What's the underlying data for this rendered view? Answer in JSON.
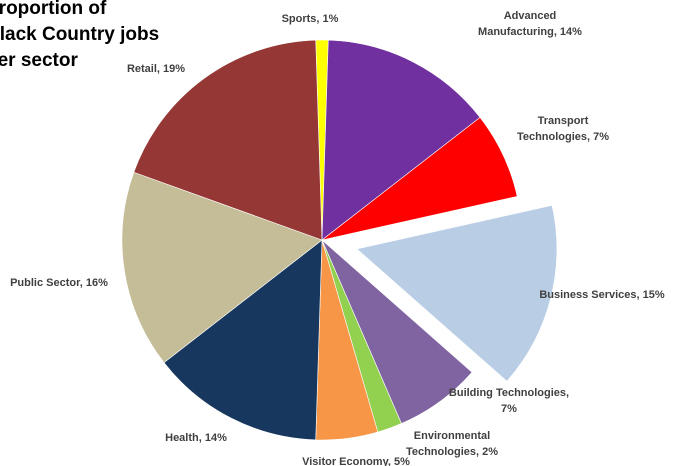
{
  "chart_data": {
    "type": "pie",
    "title_lines": [
      "Proportion of",
      "Black Country jobs",
      "per sector"
    ],
    "unit": "%",
    "categories": [
      "Sports",
      "Advanced Manufacturing",
      "Transport Technologies",
      "Business Services",
      "Building Technologies",
      "Environmental Technologies",
      "Visitor Economy",
      "Health",
      "Public Sector",
      "Retail"
    ],
    "values": [
      1,
      14,
      7,
      15,
      7,
      2,
      5,
      14,
      16,
      19
    ],
    "slices": [
      {
        "label_lines": [
          "Sports, 1%"
        ],
        "value": 1,
        "color": "#FFFF00"
      },
      {
        "label_lines": [
          "Advanced",
          "Manufacturing, 14%"
        ],
        "value": 14,
        "color": "#7030A0"
      },
      {
        "label_lines": [
          "Transport",
          "Technologies, 7%"
        ],
        "value": 7,
        "color": "#FF0000"
      },
      {
        "label_lines": [
          "Business Services, 15%"
        ],
        "value": 15,
        "color": "#B9CDE5",
        "exploded": true
      },
      {
        "label_lines": [
          "Building Technologies,",
          "7%"
        ],
        "value": 7,
        "color": "#8064A2"
      },
      {
        "label_lines": [
          "Environmental",
          "Technologies, 2%"
        ],
        "value": 2,
        "color": "#92D050"
      },
      {
        "label_lines": [
          "Visitor Economy, 5%"
        ],
        "value": 5,
        "color": "#F79646"
      },
      {
        "label_lines": [
          "Health, 14%"
        ],
        "value": 14,
        "color": "#17375E"
      },
      {
        "label_lines": [
          "Public Sector, 16%"
        ],
        "value": 16,
        "color": "#C4BD97"
      },
      {
        "label_lines": [
          "Retail, 19%"
        ],
        "value": 19,
        "color": "#953735"
      }
    ],
    "legend": "none"
  }
}
